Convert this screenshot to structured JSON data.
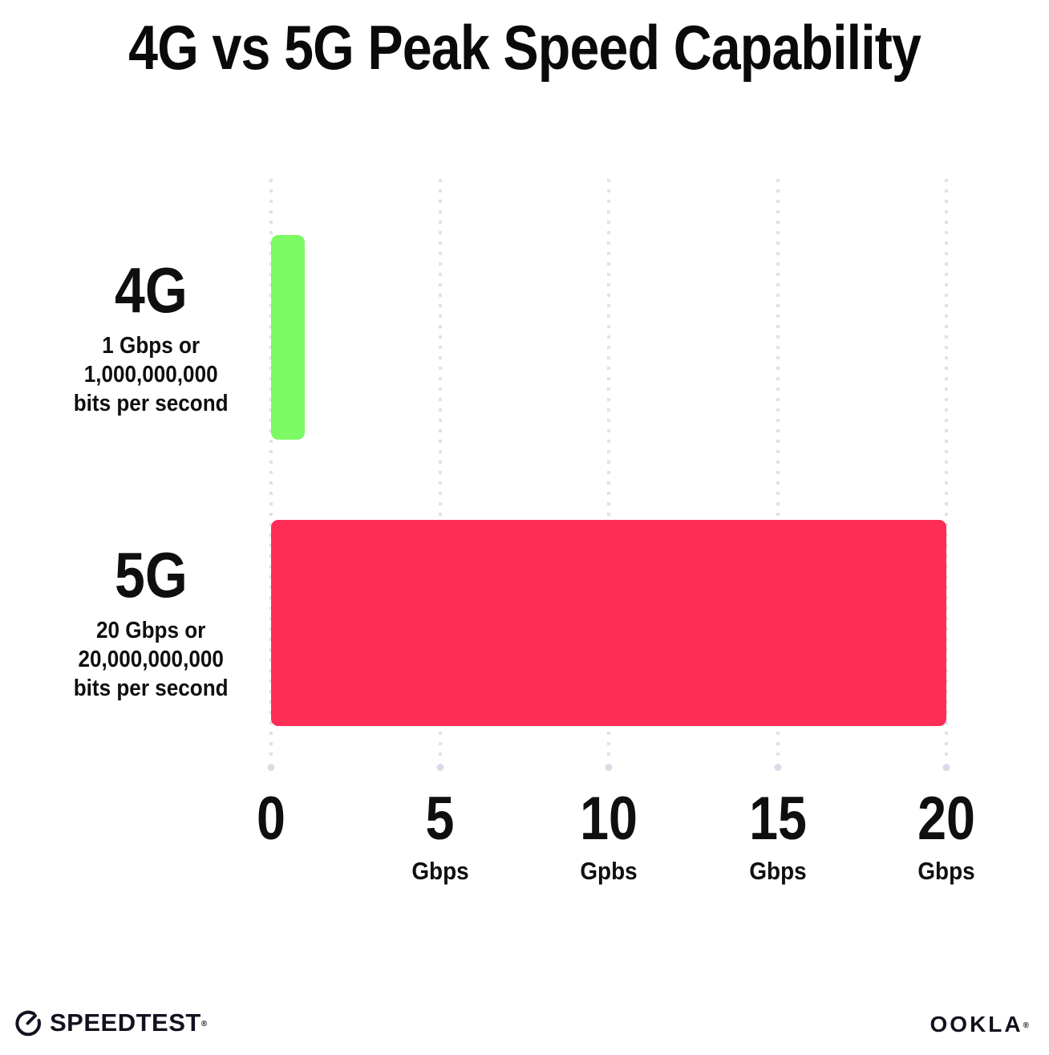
{
  "title": "4G vs 5G Peak Speed Capability",
  "chart_data": {
    "type": "bar",
    "orientation": "horizontal",
    "title": "4G vs 5G Peak Speed Capability",
    "categories": [
      "4G",
      "5G"
    ],
    "values": [
      1,
      20
    ],
    "value_unit": "Gbps",
    "bar_colors": [
      "#7DF964",
      "#FD2D56"
    ],
    "xlim": [
      0,
      20
    ],
    "xticks": [
      {
        "value": "0",
        "unit": ""
      },
      {
        "value": "5",
        "unit": "Gbps"
      },
      {
        "value": "10",
        "unit": "Gpbs"
      },
      {
        "value": "15",
        "unit": "Gbps"
      },
      {
        "value": "20",
        "unit": "Gbps"
      }
    ],
    "grid": "vertical-dotted",
    "legend": "none",
    "rows": [
      {
        "label": "4G",
        "sub_lines": [
          "1 Gbps or",
          "1,000,000,000",
          "bits per second"
        ]
      },
      {
        "label": "5G",
        "sub_lines": [
          "20 Gbps or",
          "20,000,000,000",
          "bits per second"
        ]
      }
    ]
  },
  "footer": {
    "speedtest_label": "SPEEDTEST",
    "speedtest_trademark": "®",
    "ookla_label": "OOKLA",
    "ookla_trademark": "®"
  },
  "colors": {
    "text": "#0f0f0f",
    "grid_dot": "#dfe1ec",
    "green": "#7DF964",
    "red": "#FD2D56"
  }
}
